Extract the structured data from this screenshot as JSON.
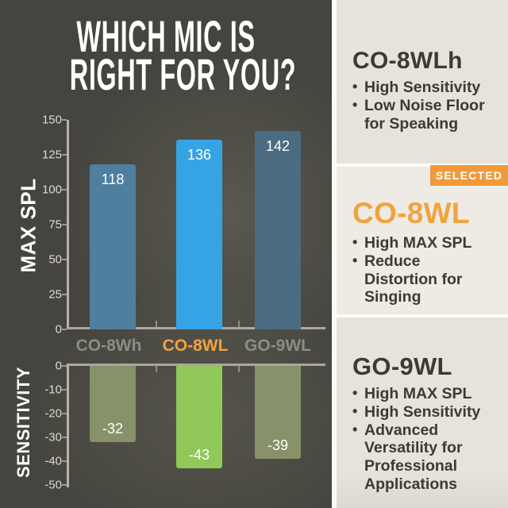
{
  "title": {
    "line1": "WHICH MIC IS",
    "line2": "RIGHT FOR YOU?"
  },
  "colors": {
    "panel_background": "#45443E",
    "sidebar_background": "#E6E3DB",
    "accent_orange": "#F09A3C",
    "text_dark": "#3B3A33",
    "text_light": "#FFFFFF",
    "axis_gray": "#B5B3AB",
    "category_gray": "#8D8C85"
  },
  "chart_data": [
    {
      "type": "bar",
      "title": "MAX SPL",
      "ylabel": "MAX SPL",
      "categories": [
        "CO-8Wh",
        "CO-8WL",
        "GO-9WL"
      ],
      "values": [
        118,
        136,
        142
      ],
      "ylim": [
        0,
        150
      ],
      "yticks": [
        150,
        125,
        100,
        75,
        50,
        25,
        0
      ],
      "bar_colors": [
        "#4F7F9F",
        "#36A3E4",
        "#4B6B80"
      ],
      "highlight_index": 1,
      "legend": "none",
      "grid": "off"
    },
    {
      "type": "bar",
      "title": "SENSITIVITY",
      "ylabel": "SENSITIVITY",
      "categories": [
        "CO-8Wh",
        "CO-8WL",
        "GO-9WL"
      ],
      "values": [
        -32,
        -43,
        -39
      ],
      "ylim": [
        -50,
        0
      ],
      "yticks": [
        0,
        -10,
        -20,
        -30,
        -40,
        -50
      ],
      "bar_colors": [
        "#87926A",
        "#90C859",
        "#87926A"
      ],
      "highlight_index": 1,
      "legend": "none",
      "grid": "off"
    }
  ],
  "sidebar": {
    "sections": [
      {
        "heading": "CO-8WLh",
        "bullets": [
          "High Sensitivity",
          "Low Noise Floor for Speaking"
        ]
      },
      {
        "heading": "CO-8WL",
        "badge": "SELECTED",
        "bullets": [
          "High MAX SPL",
          "Reduce Distortion for Singing"
        ]
      },
      {
        "heading": "GO-9WL",
        "bullets": [
          "High MAX SPL",
          "High Sensitivity",
          "Advanced Versatility for Professional Applications"
        ]
      }
    ]
  }
}
